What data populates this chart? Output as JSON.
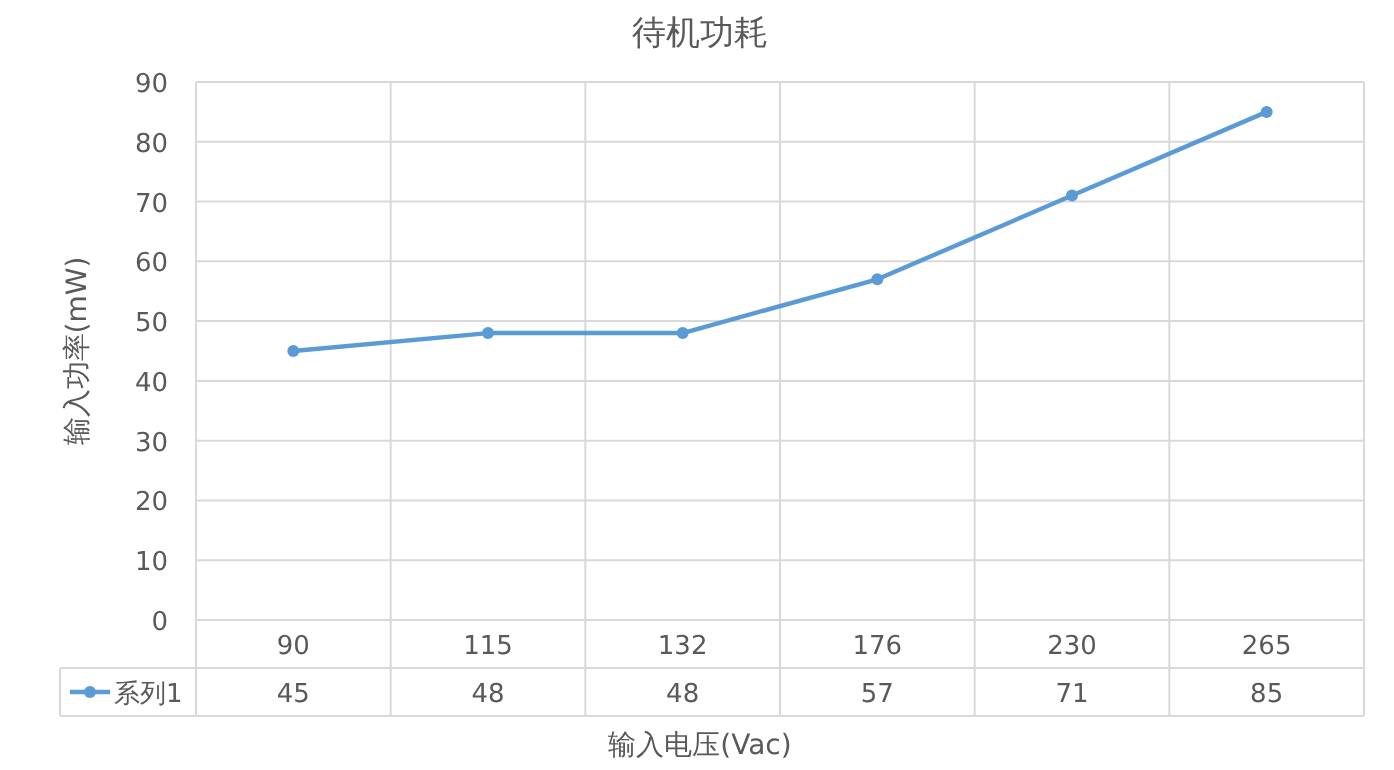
{
  "chart_data": {
    "type": "line",
    "title": "待机功耗",
    "xlabel": "输入电压(Vac)",
    "ylabel": "输入功率(mW)",
    "categories": [
      "90",
      "115",
      "132",
      "176",
      "230",
      "265"
    ],
    "series": [
      {
        "name": "系列1",
        "color": "#5b9bd5",
        "values": [
          45,
          48,
          48,
          57,
          71,
          85
        ]
      }
    ],
    "ylim": [
      0,
      90
    ],
    "yticks": [
      0,
      10,
      20,
      30,
      40,
      50,
      60,
      70,
      80,
      90
    ],
    "grid": true,
    "marker": "circle",
    "line_style": "solid",
    "data_labels": true,
    "legend": "bottom"
  }
}
